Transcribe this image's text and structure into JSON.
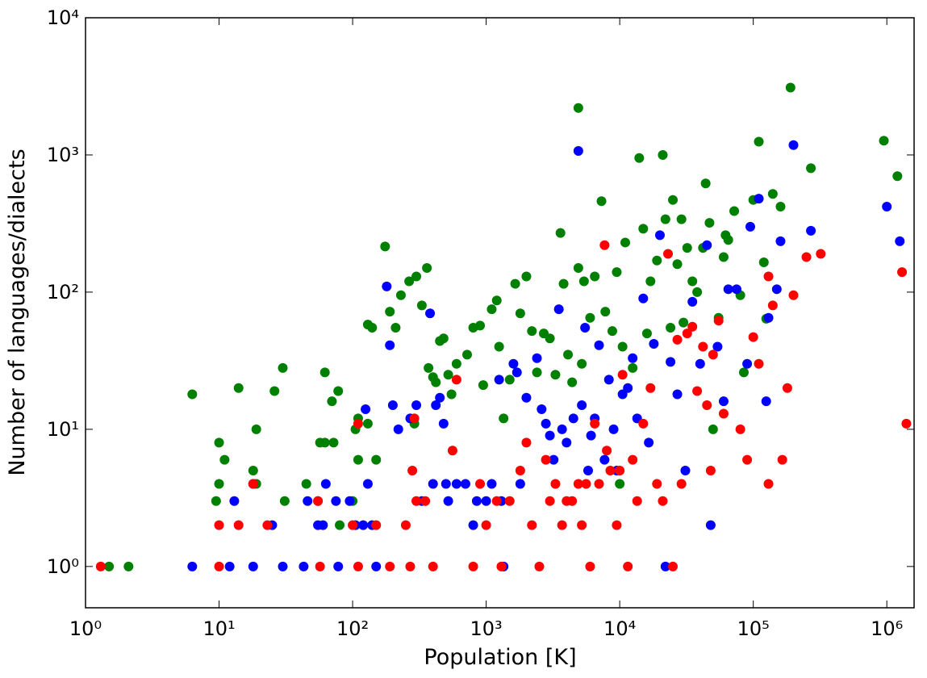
{
  "chart_data": {
    "type": "scatter",
    "xlabel": "Population [K]",
    "ylabel": "Number of languages/dialects",
    "xscale": "log",
    "yscale": "log",
    "xlim": [
      1,
      1600000
    ],
    "ylim": [
      0.5,
      10000
    ],
    "xticks": [
      {
        "value": 1,
        "label": "10⁰"
      },
      {
        "value": 10,
        "label": "10¹"
      },
      {
        "value": 100,
        "label": "10²"
      },
      {
        "value": 1000,
        "label": "10³"
      },
      {
        "value": 10000,
        "label": "10⁴"
      },
      {
        "value": 100000,
        "label": "10⁵"
      },
      {
        "value": 1000000,
        "label": "10⁶"
      }
    ],
    "yticks": [
      {
        "value": 1,
        "label": "10⁰"
      },
      {
        "value": 10,
        "label": "10¹"
      },
      {
        "value": 100,
        "label": "10²"
      },
      {
        "value": 1000,
        "label": "10³"
      },
      {
        "value": 10000,
        "label": "10⁴"
      }
    ],
    "series": [
      {
        "color": "#008000",
        "x": [
          1.5,
          2.1,
          6.3,
          9.5,
          10,
          10,
          11,
          14,
          18,
          19,
          19,
          26,
          30,
          31,
          45,
          55,
          57,
          62,
          62,
          70,
          72,
          78,
          80,
          100,
          105,
          110,
          110,
          130,
          130,
          140,
          150,
          175,
          190,
          210,
          230,
          265,
          290,
          300,
          330,
          360,
          370,
          400,
          420,
          450,
          480,
          520,
          550,
          600,
          720,
          800,
          900,
          950,
          1100,
          1200,
          1250,
          1350,
          1500,
          1650,
          1800,
          2000,
          2200,
          2400,
          2700,
          3000,
          3300,
          3600,
          3800,
          4100,
          4400,
          4900,
          4900,
          5200,
          5400,
          6000,
          6500,
          7300,
          7800,
          8800,
          9500,
          10000,
          10500,
          11000,
          12500,
          14000,
          15000,
          16000,
          17000,
          19000,
          21000,
          22000,
          24000,
          25000,
          27000,
          29000,
          30000,
          32000,
          35000,
          38000,
          42000,
          44000,
          47000,
          50000,
          55000,
          60000,
          62000,
          65000,
          72000,
          80000,
          85000,
          100000,
          110000,
          120000,
          125000,
          140000,
          160000,
          270000,
          950000,
          1200000,
          190000
        ],
        "values": [
          1,
          1,
          18,
          3,
          8,
          4,
          6,
          20,
          5,
          10,
          4,
          19,
          28,
          3,
          4,
          3,
          8,
          26,
          8,
          16,
          8,
          19,
          2,
          3,
          10,
          12,
          6,
          11,
          58,
          55,
          6,
          215,
          72,
          55,
          95,
          120,
          11,
          130,
          80,
          150,
          28,
          24,
          22,
          44,
          46,
          25,
          18,
          30,
          35,
          55,
          57,
          21,
          75,
          87,
          40,
          12,
          23,
          115,
          70,
          130,
          52,
          26,
          50,
          46,
          25,
          270,
          115,
          35,
          22,
          2200,
          150,
          30,
          120,
          65,
          130,
          460,
          72,
          52,
          140,
          4,
          40,
          230,
          28,
          950,
          290,
          50,
          120,
          170,
          1000,
          340,
          55,
          470,
          160,
          340,
          60,
          210,
          120,
          100,
          210,
          620,
          320,
          10,
          65,
          180,
          260,
          240,
          390,
          95,
          26,
          470,
          1250,
          165,
          64,
          520,
          420,
          800,
          1270,
          700,
          3100
        ]
      },
      {
        "color": "#0000ff",
        "x": [
          6.3,
          12,
          13,
          18,
          18,
          25,
          30,
          43,
          46,
          55,
          60,
          63,
          75,
          78,
          95,
          105,
          120,
          125,
          130,
          140,
          150,
          180,
          190,
          200,
          220,
          270,
          300,
          330,
          380,
          400,
          420,
          450,
          480,
          500,
          520,
          600,
          700,
          800,
          850,
          1000,
          1100,
          1250,
          1300,
          1350,
          1600,
          1700,
          1800,
          2000,
          2400,
          2600,
          2800,
          3000,
          3200,
          3500,
          3700,
          4000,
          4500,
          4900,
          5200,
          5500,
          5800,
          6100,
          6500,
          7000,
          7700,
          8300,
          9000,
          9500,
          10500,
          11500,
          12500,
          13500,
          15000,
          16500,
          18000,
          20000,
          22000,
          24000,
          27000,
          31000,
          35000,
          40000,
          45000,
          48000,
          54000,
          60000,
          65000,
          75000,
          90000,
          95000,
          110000,
          125000,
          130000,
          150000,
          160000,
          200000,
          270000,
          1000000,
          1250000
        ],
        "values": [
          1,
          1,
          3,
          4,
          1,
          2,
          1,
          1,
          3,
          2,
          2,
          4,
          3,
          1,
          3,
          2,
          2,
          14,
          4,
          2,
          1,
          110,
          41,
          15,
          10,
          12,
          15,
          3,
          70,
          4,
          15,
          17,
          11,
          4,
          3,
          4,
          4,
          2,
          3,
          3,
          4,
          23,
          3,
          1,
          30,
          26,
          4,
          17,
          33,
          14,
          11,
          9,
          6,
          75,
          10,
          8,
          12,
          1070,
          15,
          55,
          5,
          9,
          12,
          41,
          6,
          23,
          10,
          5,
          18,
          20,
          33,
          12,
          90,
          8,
          42,
          260,
          1,
          31,
          18,
          5,
          85,
          30,
          220,
          2,
          40,
          16,
          105,
          105,
          30,
          300,
          480,
          16,
          65,
          105,
          235,
          1180,
          280,
          420,
          235
        ]
      },
      {
        "color": "#ff0000",
        "x": [
          1.3,
          10,
          10,
          14,
          18,
          23,
          55,
          57,
          100,
          110,
          110,
          150,
          190,
          250,
          270,
          280,
          290,
          300,
          350,
          400,
          560,
          600,
          800,
          900,
          1000,
          1200,
          1300,
          1500,
          1800,
          2000,
          2200,
          2500,
          2800,
          3000,
          3300,
          3700,
          4000,
          4400,
          4900,
          5200,
          5600,
          6000,
          6500,
          7000,
          7700,
          8000,
          8500,
          9500,
          10000,
          10500,
          11500,
          12500,
          13500,
          15000,
          17000,
          19000,
          21000,
          23000,
          25000,
          27000,
          29000,
          32000,
          35000,
          38000,
          42000,
          45000,
          48000,
          50000,
          55000,
          60000,
          80000,
          90000,
          100000,
          110000,
          130000,
          130000,
          140000,
          165000,
          180000,
          200000,
          250000,
          320000,
          1300000,
          1400000
        ],
        "values": [
          1,
          1,
          2,
          2,
          4,
          2,
          3,
          1,
          2,
          11,
          1,
          2,
          1,
          2,
          1,
          5,
          12,
          3,
          3,
          1,
          7,
          23,
          1,
          4,
          2,
          3,
          1,
          3,
          5,
          8,
          2,
          1,
          6,
          3,
          4,
          2,
          3,
          3,
          4,
          2,
          4,
          1,
          11,
          4,
          220,
          7,
          5,
          2,
          5,
          25,
          1,
          6,
          3,
          11,
          20,
          4,
          3,
          190,
          1,
          45,
          4,
          50,
          56,
          19,
          40,
          15,
          5,
          35,
          62,
          13,
          10,
          6,
          47,
          30,
          4,
          130,
          80,
          6,
          20,
          95,
          180,
          190,
          140,
          11
        ]
      }
    ]
  }
}
